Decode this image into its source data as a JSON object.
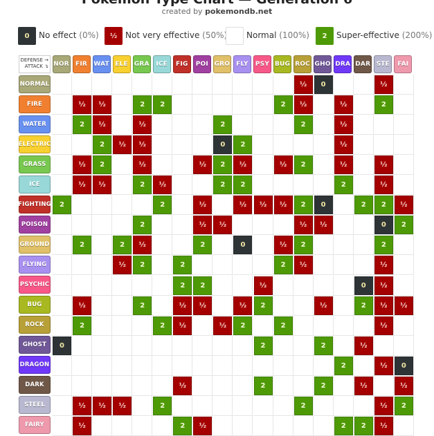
{
  "title": "Pokémon Type Chart — Generation 6",
  "credit_prefix": "created by",
  "credit_site": "pokemondb.net",
  "legend": [
    {
      "key": "x0",
      "symbol": "0",
      "label": "No effect",
      "pct": "(0%)",
      "color": "#2e3436"
    },
    {
      "key": "xh",
      "symbol": "½",
      "label": "Not very effective",
      "pct": "(50%)",
      "color": "#a40000"
    },
    {
      "key": "x1",
      "symbol": "",
      "label": "Normal",
      "pct": "(100%)",
      "color": "#ffffff"
    },
    {
      "key": "x2",
      "symbol": "2",
      "label": "Super-effective",
      "pct": "(200%)",
      "color": "#4e9a06"
    }
  ],
  "corner": {
    "defense": "DEFENSE →",
    "attack": "ATTACK ↴"
  },
  "types": [
    {
      "abbr": "NOR",
      "name": "NORMAL",
      "color": "#a8a878"
    },
    {
      "abbr": "FIR",
      "name": "FIRE",
      "color": "#f08030"
    },
    {
      "abbr": "WAT",
      "name": "WATER",
      "color": "#6890f0"
    },
    {
      "abbr": "ELE",
      "name": "ELECTRIC",
      "color": "#f8d030"
    },
    {
      "abbr": "GRA",
      "name": "GRASS",
      "color": "#78c850"
    },
    {
      "abbr": "ICE",
      "name": "ICE",
      "color": "#98d8d8"
    },
    {
      "abbr": "FIG",
      "name": "FIGHTING",
      "color": "#c03028"
    },
    {
      "abbr": "POI",
      "name": "POISON",
      "color": "#a040a0"
    },
    {
      "abbr": "GRO",
      "name": "GROUND",
      "color": "#e0c068"
    },
    {
      "abbr": "FLY",
      "name": "FLYING",
      "color": "#a890f0"
    },
    {
      "abbr": "PSY",
      "name": "PSYCHIC",
      "color": "#f85888"
    },
    {
      "abbr": "BUG",
      "name": "BUG",
      "color": "#a8b820"
    },
    {
      "abbr": "ROC",
      "name": "ROCK",
      "color": "#b8a038"
    },
    {
      "abbr": "GHO",
      "name": "GHOST",
      "color": "#705898"
    },
    {
      "abbr": "DRA",
      "name": "DRAGON",
      "color": "#7038f8"
    },
    {
      "abbr": "DAR",
      "name": "DARK",
      "color": "#705848"
    },
    {
      "abbr": "STE",
      "name": "STEEL",
      "color": "#b8b8d0"
    },
    {
      "abbr": "FAI",
      "name": "FAIRY",
      "color": "#ee99ac"
    }
  ],
  "chart_data": {
    "type": "table",
    "rows_axis": "ATTACK",
    "cols_axis": "DEFENSE",
    "matrix": [
      [
        "",
        "",
        "",
        "",
        "",
        "",
        "",
        "",
        "",
        "",
        "",
        "",
        "½",
        "0",
        "",
        "",
        "½",
        ""
      ],
      [
        "",
        "½",
        "½",
        "",
        "2",
        "2",
        "",
        "",
        "",
        "",
        "",
        "2",
        "½",
        "",
        "½",
        "",
        "2",
        ""
      ],
      [
        "",
        "2",
        "½",
        "",
        "½",
        "",
        "",
        "",
        "2",
        "",
        "",
        "",
        "2",
        "",
        "½",
        "",
        "",
        ""
      ],
      [
        "",
        "",
        "2",
        "½",
        "½",
        "",
        "",
        "",
        "0",
        "2",
        "",
        "",
        "",
        "",
        "½",
        "",
        "",
        ""
      ],
      [
        "",
        "½",
        "2",
        "",
        "½",
        "",
        "",
        "½",
        "2",
        "½",
        "",
        "½",
        "2",
        "",
        "½",
        "",
        "½",
        ""
      ],
      [
        "",
        "½",
        "½",
        "",
        "2",
        "½",
        "",
        "",
        "2",
        "2",
        "",
        "",
        "",
        "",
        "2",
        "",
        "½",
        ""
      ],
      [
        "2",
        "",
        "",
        "",
        "",
        "2",
        "",
        "½",
        "",
        "½",
        "½",
        "½",
        "2",
        "0",
        "",
        "2",
        "2",
        "½"
      ],
      [
        "",
        "",
        "",
        "",
        "2",
        "",
        "",
        "½",
        "½",
        "",
        "",
        "",
        "½",
        "½",
        "",
        "",
        "0",
        "2"
      ],
      [
        "",
        "2",
        "",
        "2",
        "½",
        "",
        "",
        "2",
        "",
        "0",
        "",
        "½",
        "2",
        "",
        "",
        "",
        "2",
        ""
      ],
      [
        "",
        "",
        "",
        "½",
        "2",
        "",
        "2",
        "",
        "",
        "",
        "",
        "2",
        "½",
        "",
        "",
        "",
        "½",
        ""
      ],
      [
        "",
        "",
        "",
        "",
        "",
        "",
        "2",
        "2",
        "",
        "",
        "½",
        "",
        "",
        "",
        "",
        "0",
        "½",
        ""
      ],
      [
        "",
        "½",
        "",
        "",
        "2",
        "",
        "½",
        "½",
        "",
        "½",
        "2",
        "",
        "",
        "½",
        "",
        "2",
        "½",
        "½"
      ],
      [
        "",
        "2",
        "",
        "",
        "",
        "2",
        "½",
        "",
        "½",
        "2",
        "",
        "2",
        "",
        "",
        "",
        "",
        "½",
        ""
      ],
      [
        "0",
        "",
        "",
        "",
        "",
        "",
        "",
        "",
        "",
        "",
        "2",
        "",
        "",
        "2",
        "",
        "½",
        "",
        ""
      ],
      [
        "",
        "",
        "",
        "",
        "",
        "",
        "",
        "",
        "",
        "",
        "",
        "",
        "",
        "",
        "2",
        "",
        "½",
        "0"
      ],
      [
        "",
        "",
        "",
        "",
        "",
        "",
        "½",
        "",
        "",
        "",
        "2",
        "",
        "",
        "2",
        "",
        "½",
        "",
        "½"
      ],
      [
        "",
        "½",
        "½",
        "½",
        "",
        "2",
        "",
        "",
        "",
        "",
        "",
        "",
        "2",
        "",
        "",
        "",
        "½",
        "2"
      ],
      [
        "",
        "½",
        "",
        "",
        "",
        "",
        "2",
        "½",
        "",
        "",
        "",
        "",
        "",
        "",
        "2",
        "2",
        "½",
        ""
      ]
    ]
  }
}
